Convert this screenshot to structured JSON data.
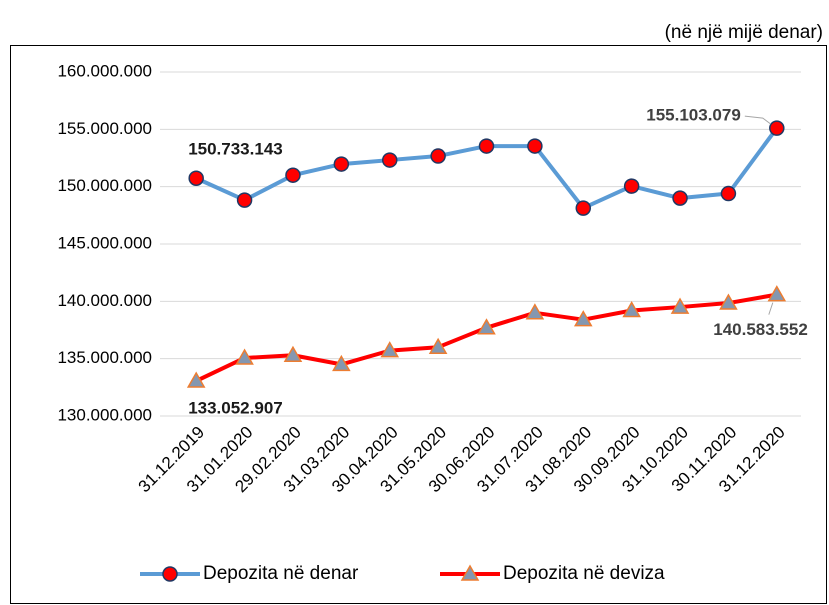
{
  "chart_data": {
    "type": "line",
    "annotation": "(në një mijë denar)",
    "categories": [
      "31.12.2019",
      "31.01.2020",
      "29.02.2020",
      "31.03.2020",
      "30.04.2020",
      "31.05.2020",
      "30.06.2020",
      "31.07.2020",
      "31.08.2020",
      "30.09.2020",
      "31.10.2020",
      "30.11.2020",
      "31.12.2020"
    ],
    "series": [
      {
        "name": "Depozita në denar",
        "color": "#5b9bd5",
        "marker": "circle",
        "marker_color": "#ff0000",
        "values": [
          150733143,
          148830000,
          151000000,
          151970000,
          152320000,
          152670000,
          153540000,
          153540000,
          148130000,
          150050000,
          149000000,
          149400000,
          155103079
        ],
        "value_labels": [
          "150.733.143",
          null,
          null,
          null,
          null,
          null,
          null,
          null,
          null,
          null,
          null,
          null,
          "155.103.079"
        ]
      },
      {
        "name": "Depozita në deviza",
        "color": "#ff0000",
        "marker": "triangle",
        "marker_color": "#8497b0",
        "values": [
          133052907,
          135060000,
          135300000,
          134500000,
          135700000,
          136000000,
          137700000,
          139000000,
          138400000,
          139200000,
          139500000,
          139850000,
          140583552
        ],
        "value_labels": [
          "133.052.907",
          null,
          null,
          null,
          null,
          null,
          null,
          null,
          null,
          null,
          null,
          null,
          "140.583.552"
        ]
      }
    ],
    "ylim": [
      130000000,
      160000000
    ],
    "yticks": [
      {
        "value": 130000000,
        "label": "130.000.000"
      },
      {
        "value": 135000000,
        "label": "135.000.000"
      },
      {
        "value": 140000000,
        "label": "140.000.000"
      },
      {
        "value": 145000000,
        "label": "145.000.000"
      },
      {
        "value": 150000000,
        "label": "150.000.000"
      },
      {
        "value": 155000000,
        "label": "155.000.000"
      },
      {
        "value": 160000000,
        "label": "160.000.000"
      }
    ],
    "grid": true,
    "legend": "bottom"
  }
}
